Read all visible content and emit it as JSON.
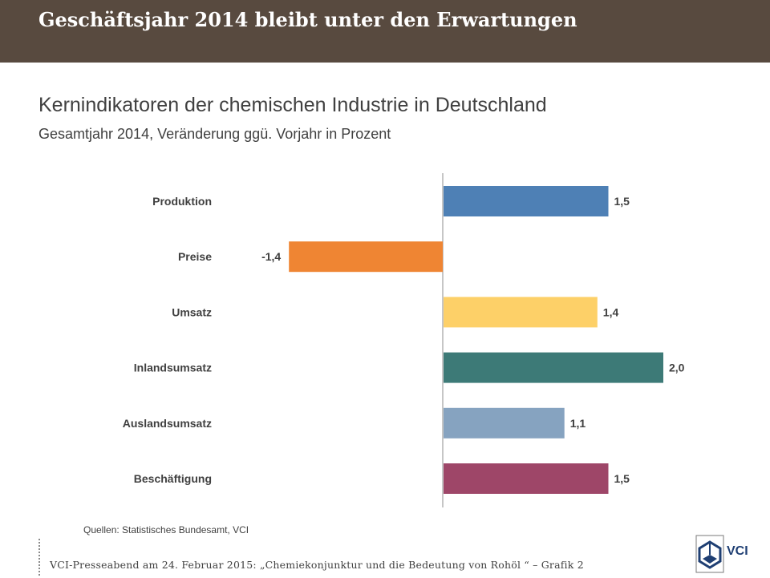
{
  "header": {
    "title": "Geschäftsjahr 2014 bleibt unter den Erwartungen"
  },
  "chart_data": {
    "type": "bar",
    "orientation": "horizontal",
    "title": "Kernindikatoren der chemischen Industrie in Deutschland",
    "subtitle": "Gesamtjahr 2014, Veränderung ggü. Vorjahr in Prozent",
    "categories": [
      "Produktion",
      "Preise",
      "Umsatz",
      "Inlandsumsatz",
      "Auslandsumsatz",
      "Beschäftigung"
    ],
    "values": [
      1.5,
      -1.4,
      1.4,
      2.0,
      1.1,
      1.5
    ],
    "value_labels": [
      "1,5",
      "-1,4",
      "1,4",
      "2,0",
      "1,1",
      "1,5"
    ],
    "colors": [
      "#4e80b5",
      "#ef8533",
      "#fdd068",
      "#3d7a77",
      "#86a3c0",
      "#9e4668"
    ],
    "grid": false,
    "legend": "none"
  },
  "source": "Quellen:  Statistisches Bundesamt, VCI",
  "footer": {
    "text": "VCI-Presseabend am 24. Februar 2015: „Chemiekonjunktur und die Bedeutung von Rohöl “ – Grafik 2",
    "logo_text": "VCI"
  }
}
